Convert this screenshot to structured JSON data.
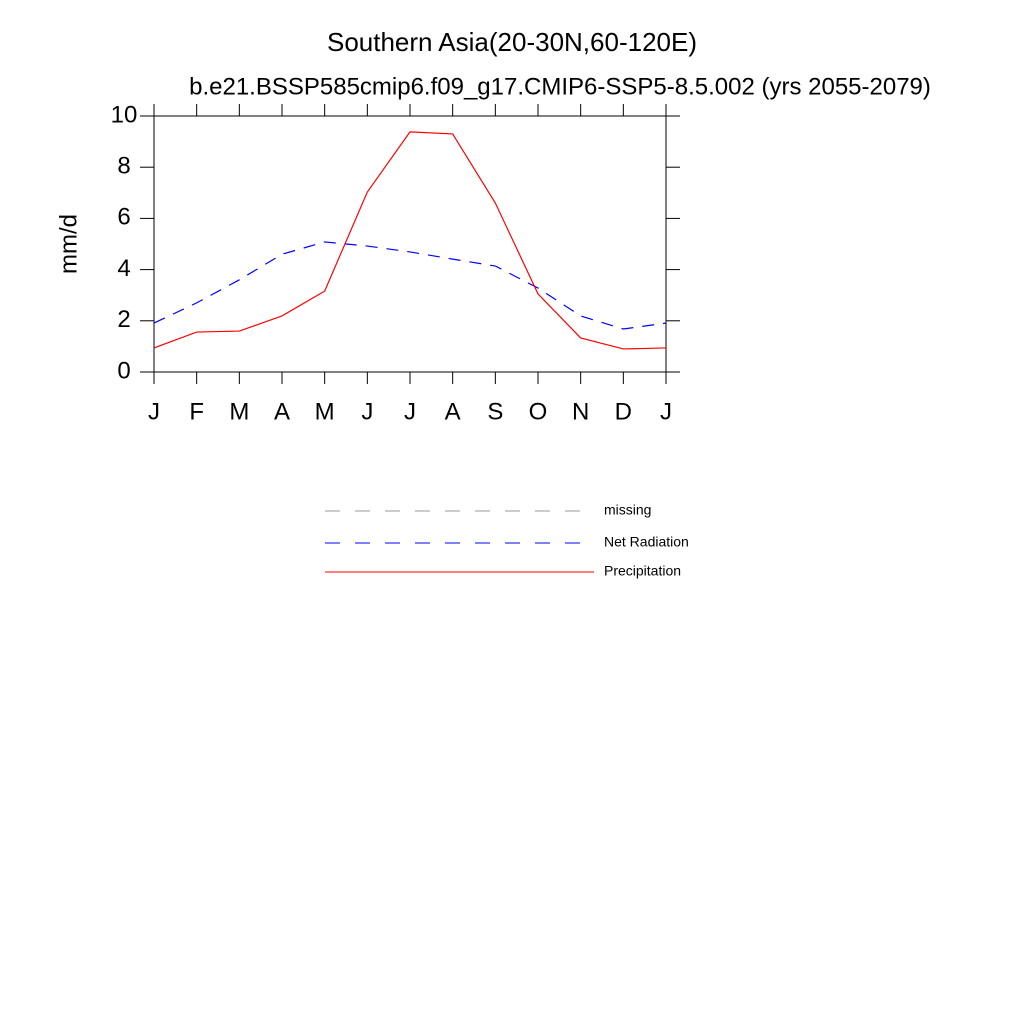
{
  "chart_data": {
    "type": "line",
    "title": "Southern Asia(20-30N,60-120E)",
    "subtitle": "b.e21.BSSP585cmip6.f09_g17.CMIP6-SSP5-8.5.002 (yrs 2055-2079)",
    "y_label": "mm/d",
    "categories": [
      "J",
      "F",
      "M",
      "A",
      "M",
      "J",
      "J",
      "A",
      "S",
      "O",
      "N",
      "D",
      "J"
    ],
    "ylim": [
      0,
      10
    ],
    "yticks": [
      0,
      2,
      4,
      6,
      8,
      10
    ],
    "series": [
      {
        "name": "missing",
        "color": "#999999",
        "line_style": "dashed",
        "values": [
          null,
          null,
          null,
          null,
          null,
          null,
          null,
          null,
          null,
          null,
          null,
          null,
          null
        ]
      },
      {
        "name": "Net Radiation",
        "color": "#0000ff",
        "line_style": "dashed",
        "values": [
          1.91,
          2.7,
          3.6,
          4.6,
          5.08,
          4.92,
          4.69,
          4.41,
          4.14,
          3.28,
          2.19,
          1.68,
          1.91
        ]
      },
      {
        "name": "Precipitation",
        "color": "#ff0000",
        "line_style": "solid",
        "values": [
          0.94,
          1.56,
          1.6,
          2.19,
          3.16,
          7.03,
          9.38,
          9.3,
          6.6,
          3.05,
          1.33,
          0.9,
          0.94
        ]
      }
    ]
  }
}
